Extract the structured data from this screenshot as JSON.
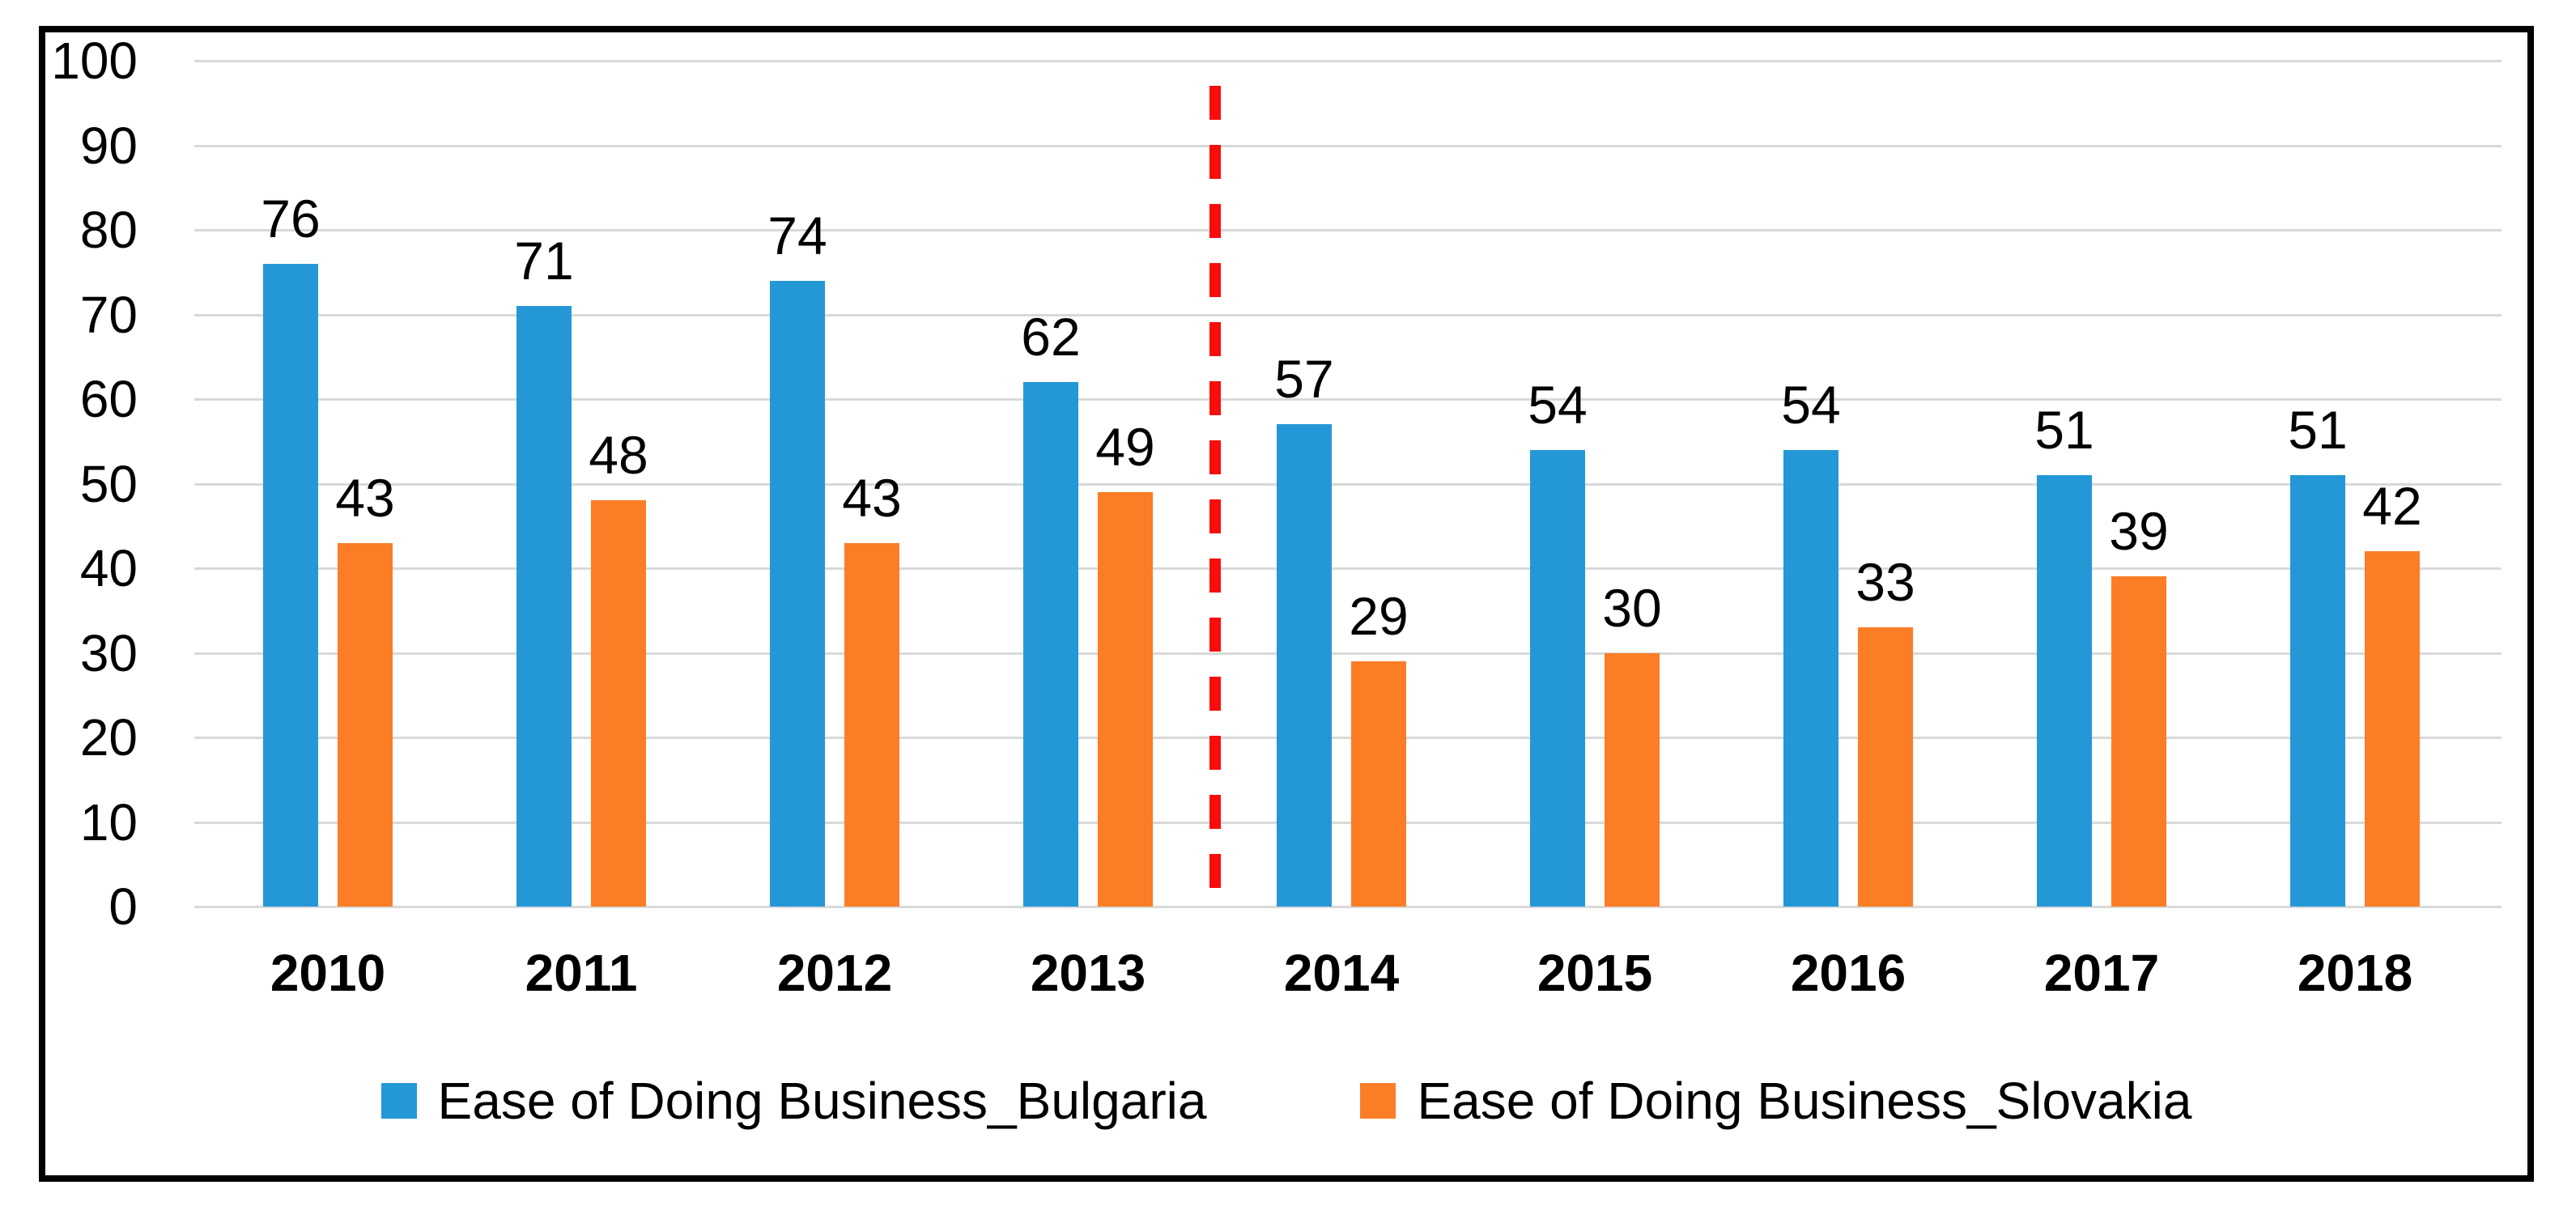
{
  "chart_data": {
    "type": "bar",
    "title": "",
    "xlabel": "",
    "ylabel": "",
    "categories": [
      "2010",
      "2011",
      "2012",
      "2013",
      "2014",
      "2015",
      "2016",
      "2017",
      "2018"
    ],
    "series": [
      {
        "name": "Ease of Doing Business_Bulgaria",
        "color": "#2498D6",
        "values": [
          76,
          71,
          74,
          62,
          57,
          54,
          54,
          51,
          51
        ]
      },
      {
        "name": "Ease of Doing Business_Slovakia",
        "color": "#FB7D26",
        "values": [
          43,
          48,
          43,
          49,
          29,
          30,
          33,
          39,
          42
        ]
      }
    ],
    "ylim": [
      0,
      100
    ],
    "yticks": [
      0,
      10,
      20,
      30,
      40,
      50,
      60,
      70,
      80,
      90,
      100
    ],
    "grid": true,
    "gridline_color": "#d9d9d9",
    "frame_color": "#000000",
    "legend_position": "bottom",
    "divider": {
      "after_category": "2013",
      "style": "dashed",
      "color": "#F90C0C"
    }
  }
}
